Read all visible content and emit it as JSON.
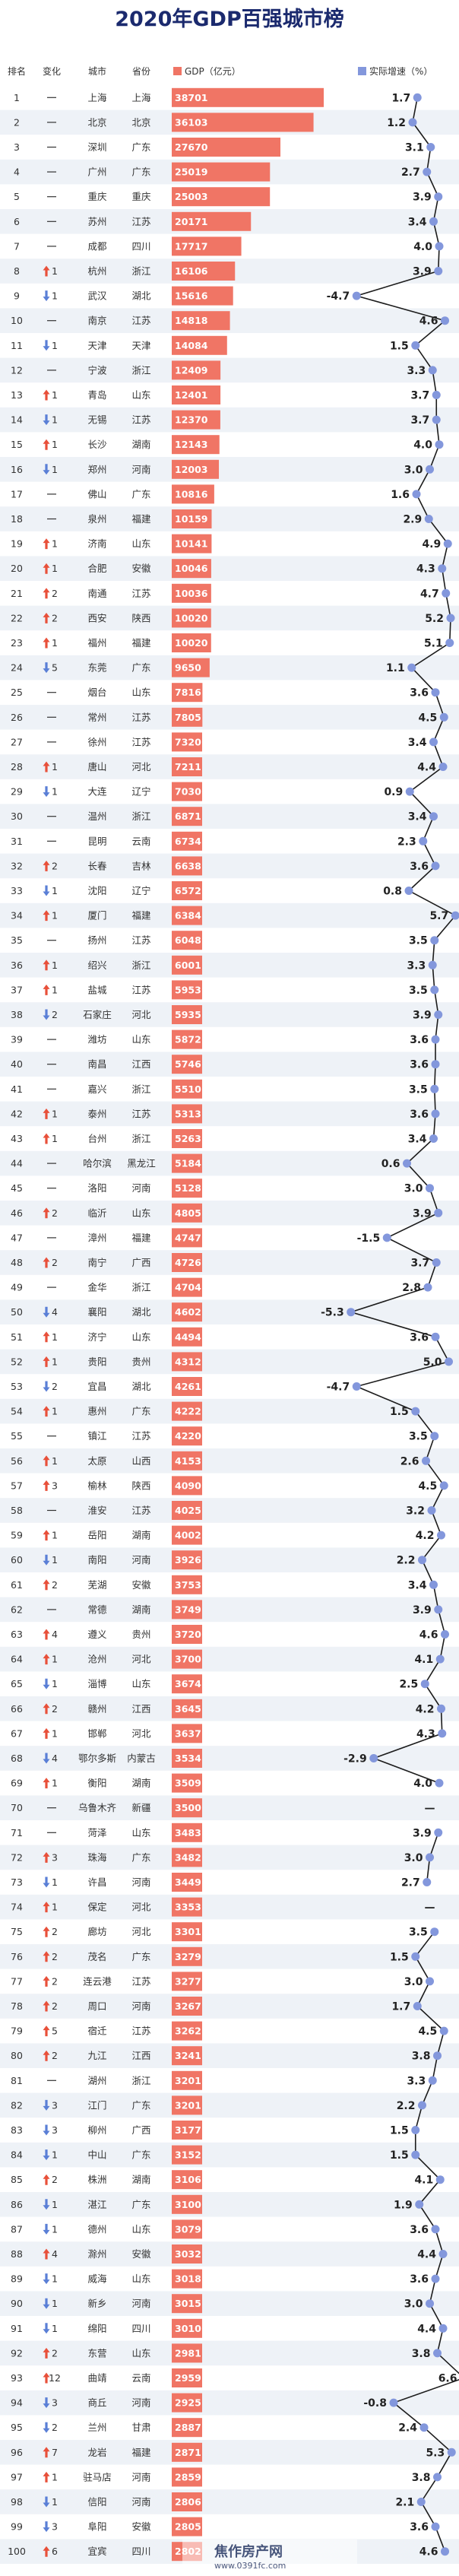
{
  "header": {
    "title": "2020年GDP百强城市榜",
    "columns": {
      "rank": "排名",
      "change": "变化",
      "city": "城市",
      "province": "省份"
    },
    "legend": {
      "gdp": "GDP（亿元）",
      "growth": "实际增速（%）"
    }
  },
  "watermark": {
    "text": "焦作房产网",
    "url": "www.0391fc.com"
  },
  "colors": {
    "bar": "#f07565",
    "line": "#1c1c1c",
    "point": "#8397dc",
    "up": "#e8503a",
    "down": "#5a7fd6",
    "row_alt": "#eef2f7"
  },
  "chart_data": {
    "type": "bar",
    "title": "2020年GDP百强城市榜",
    "xlabel": "",
    "ylabel": "",
    "series": [
      {
        "name": "GDP（亿元）",
        "kind": "bar"
      },
      {
        "name": "实际增速（%）",
        "kind": "line"
      }
    ],
    "rows": [
      {
        "rank": 1,
        "dir": "none",
        "delta": "",
        "city": "上海",
        "province": "上海",
        "gdp": 38701,
        "growth": "1.7"
      },
      {
        "rank": 2,
        "dir": "none",
        "delta": "",
        "city": "北京",
        "province": "北京",
        "gdp": 36103,
        "growth": "1.2"
      },
      {
        "rank": 3,
        "dir": "none",
        "delta": "",
        "city": "深圳",
        "province": "广东",
        "gdp": 27670,
        "growth": "3.1"
      },
      {
        "rank": 4,
        "dir": "none",
        "delta": "",
        "city": "广州",
        "province": "广东",
        "gdp": 25019,
        "growth": "2.7"
      },
      {
        "rank": 5,
        "dir": "none",
        "delta": "",
        "city": "重庆",
        "province": "重庆",
        "gdp": 25003,
        "growth": "3.9"
      },
      {
        "rank": 6,
        "dir": "none",
        "delta": "",
        "city": "苏州",
        "province": "江苏",
        "gdp": 20171,
        "growth": "3.4"
      },
      {
        "rank": 7,
        "dir": "none",
        "delta": "",
        "city": "成都",
        "province": "四川",
        "gdp": 17717,
        "growth": "4.0"
      },
      {
        "rank": 8,
        "dir": "up",
        "delta": "1",
        "city": "杭州",
        "province": "浙江",
        "gdp": 16106,
        "growth": "3.9"
      },
      {
        "rank": 9,
        "dir": "down",
        "delta": "1",
        "city": "武汉",
        "province": "湖北",
        "gdp": 15616,
        "growth": "-4.7"
      },
      {
        "rank": 10,
        "dir": "none",
        "delta": "",
        "city": "南京",
        "province": "江苏",
        "gdp": 14818,
        "growth": "4.6"
      },
      {
        "rank": 11,
        "dir": "down",
        "delta": "1",
        "city": "天津",
        "province": "天津",
        "gdp": 14084,
        "growth": "1.5"
      },
      {
        "rank": 12,
        "dir": "none",
        "delta": "",
        "city": "宁波",
        "province": "浙江",
        "gdp": 12409,
        "growth": "3.3"
      },
      {
        "rank": 13,
        "dir": "up",
        "delta": "1",
        "city": "青岛",
        "province": "山东",
        "gdp": 12401,
        "growth": "3.7"
      },
      {
        "rank": 14,
        "dir": "down",
        "delta": "1",
        "city": "无锡",
        "province": "江苏",
        "gdp": 12370,
        "growth": "3.7"
      },
      {
        "rank": 15,
        "dir": "up",
        "delta": "1",
        "city": "长沙",
        "province": "湖南",
        "gdp": 12143,
        "growth": "4.0"
      },
      {
        "rank": 16,
        "dir": "down",
        "delta": "1",
        "city": "郑州",
        "province": "河南",
        "gdp": 12003,
        "growth": "3.0"
      },
      {
        "rank": 17,
        "dir": "none",
        "delta": "",
        "city": "佛山",
        "province": "广东",
        "gdp": 10816,
        "growth": "1.6"
      },
      {
        "rank": 18,
        "dir": "none",
        "delta": "",
        "city": "泉州",
        "province": "福建",
        "gdp": 10159,
        "growth": "2.9"
      },
      {
        "rank": 19,
        "dir": "up",
        "delta": "1",
        "city": "济南",
        "province": "山东",
        "gdp": 10141,
        "growth": "4.9"
      },
      {
        "rank": 20,
        "dir": "up",
        "delta": "1",
        "city": "合肥",
        "province": "安徽",
        "gdp": 10046,
        "growth": "4.3"
      },
      {
        "rank": 21,
        "dir": "up",
        "delta": "2",
        "city": "南通",
        "province": "江苏",
        "gdp": 10036,
        "growth": "4.7"
      },
      {
        "rank": 22,
        "dir": "up",
        "delta": "2",
        "city": "西安",
        "province": "陕西",
        "gdp": 10020,
        "growth": "5.2"
      },
      {
        "rank": 23,
        "dir": "up",
        "delta": "1",
        "city": "福州",
        "province": "福建",
        "gdp": 10020,
        "growth": "5.1"
      },
      {
        "rank": 24,
        "dir": "down",
        "delta": "5",
        "city": "东莞",
        "province": "广东",
        "gdp": 9650,
        "growth": "1.1"
      },
      {
        "rank": 25,
        "dir": "none",
        "delta": "",
        "city": "烟台",
        "province": "山东",
        "gdp": 7816,
        "growth": "3.6"
      },
      {
        "rank": 26,
        "dir": "none",
        "delta": "",
        "city": "常州",
        "province": "江苏",
        "gdp": 7805,
        "growth": "4.5"
      },
      {
        "rank": 27,
        "dir": "none",
        "delta": "",
        "city": "徐州",
        "province": "江苏",
        "gdp": 7320,
        "growth": "3.4"
      },
      {
        "rank": 28,
        "dir": "up",
        "delta": "1",
        "city": "唐山",
        "province": "河北",
        "gdp": 7211,
        "growth": "4.4"
      },
      {
        "rank": 29,
        "dir": "down",
        "delta": "1",
        "city": "大连",
        "province": "辽宁",
        "gdp": 7030,
        "growth": "0.9"
      },
      {
        "rank": 30,
        "dir": "none",
        "delta": "",
        "city": "温州",
        "province": "浙江",
        "gdp": 6871,
        "growth": "3.4"
      },
      {
        "rank": 31,
        "dir": "none",
        "delta": "",
        "city": "昆明",
        "province": "云南",
        "gdp": 6734,
        "growth": "2.3"
      },
      {
        "rank": 32,
        "dir": "up",
        "delta": "2",
        "city": "长春",
        "province": "吉林",
        "gdp": 6638,
        "growth": "3.6"
      },
      {
        "rank": 33,
        "dir": "down",
        "delta": "1",
        "city": "沈阳",
        "province": "辽宁",
        "gdp": 6572,
        "growth": "0.8"
      },
      {
        "rank": 34,
        "dir": "up",
        "delta": "1",
        "city": "厦门",
        "province": "福建",
        "gdp": 6384,
        "growth": "5.7"
      },
      {
        "rank": 35,
        "dir": "none",
        "delta": "",
        "city": "扬州",
        "province": "江苏",
        "gdp": 6048,
        "growth": "3.5"
      },
      {
        "rank": 36,
        "dir": "up",
        "delta": "1",
        "city": "绍兴",
        "province": "浙江",
        "gdp": 6001,
        "growth": "3.3"
      },
      {
        "rank": 37,
        "dir": "up",
        "delta": "1",
        "city": "盐城",
        "province": "江苏",
        "gdp": 5953,
        "growth": "3.5"
      },
      {
        "rank": 38,
        "dir": "down",
        "delta": "2",
        "city": "石家庄",
        "province": "河北",
        "gdp": 5935,
        "growth": "3.9"
      },
      {
        "rank": 39,
        "dir": "none",
        "delta": "",
        "city": "潍坊",
        "province": "山东",
        "gdp": 5872,
        "growth": "3.6"
      },
      {
        "rank": 40,
        "dir": "none",
        "delta": "",
        "city": "南昌",
        "province": "江西",
        "gdp": 5746,
        "growth": "3.6"
      },
      {
        "rank": 41,
        "dir": "none",
        "delta": "",
        "city": "嘉兴",
        "province": "浙江",
        "gdp": 5510,
        "growth": "3.5"
      },
      {
        "rank": 42,
        "dir": "up",
        "delta": "1",
        "city": "泰州",
        "province": "江苏",
        "gdp": 5313,
        "growth": "3.6"
      },
      {
        "rank": 43,
        "dir": "up",
        "delta": "1",
        "city": "台州",
        "province": "浙江",
        "gdp": 5263,
        "growth": "3.4"
      },
      {
        "rank": 44,
        "dir": "none",
        "delta": "",
        "city": "哈尔滨",
        "province": "黑龙江",
        "gdp": 5184,
        "growth": "0.6"
      },
      {
        "rank": 45,
        "dir": "none",
        "delta": "",
        "city": "洛阳",
        "province": "河南",
        "gdp": 5128,
        "growth": "3.0"
      },
      {
        "rank": 46,
        "dir": "up",
        "delta": "2",
        "city": "临沂",
        "province": "山东",
        "gdp": 4805,
        "growth": "3.9"
      },
      {
        "rank": 47,
        "dir": "none",
        "delta": "",
        "city": "漳州",
        "province": "福建",
        "gdp": 4747,
        "growth": "-1.5"
      },
      {
        "rank": 48,
        "dir": "up",
        "delta": "2",
        "city": "南宁",
        "province": "广西",
        "gdp": 4726,
        "growth": "3.7"
      },
      {
        "rank": 49,
        "dir": "none",
        "delta": "",
        "city": "金华",
        "province": "浙江",
        "gdp": 4704,
        "growth": "2.8"
      },
      {
        "rank": 50,
        "dir": "down",
        "delta": "4",
        "city": "襄阳",
        "province": "湖北",
        "gdp": 4602,
        "growth": "-5.3"
      },
      {
        "rank": 51,
        "dir": "up",
        "delta": "1",
        "city": "济宁",
        "province": "山东",
        "gdp": 4494,
        "growth": "3.6"
      },
      {
        "rank": 52,
        "dir": "up",
        "delta": "1",
        "city": "贵阳",
        "province": "贵州",
        "gdp": 4312,
        "growth": "5.0"
      },
      {
        "rank": 53,
        "dir": "down",
        "delta": "2",
        "city": "宜昌",
        "province": "湖北",
        "gdp": 4261,
        "growth": "-4.7"
      },
      {
        "rank": 54,
        "dir": "up",
        "delta": "1",
        "city": "惠州",
        "province": "广东",
        "gdp": 4222,
        "growth": "1.5"
      },
      {
        "rank": 55,
        "dir": "none",
        "delta": "",
        "city": "镇江",
        "province": "江苏",
        "gdp": 4220,
        "growth": "3.5"
      },
      {
        "rank": 56,
        "dir": "up",
        "delta": "1",
        "city": "太原",
        "province": "山西",
        "gdp": 4153,
        "growth": "2.6"
      },
      {
        "rank": 57,
        "dir": "up",
        "delta": "3",
        "city": "榆林",
        "province": "陕西",
        "gdp": 4090,
        "growth": "4.5"
      },
      {
        "rank": 58,
        "dir": "none",
        "delta": "",
        "city": "淮安",
        "province": "江苏",
        "gdp": 4025,
        "growth": "3.2"
      },
      {
        "rank": 59,
        "dir": "up",
        "delta": "1",
        "city": "岳阳",
        "province": "湖南",
        "gdp": 4002,
        "growth": "4.2"
      },
      {
        "rank": 60,
        "dir": "down",
        "delta": "1",
        "city": "南阳",
        "province": "河南",
        "gdp": 3926,
        "growth": "2.2"
      },
      {
        "rank": 61,
        "dir": "up",
        "delta": "2",
        "city": "芜湖",
        "province": "安徽",
        "gdp": 3753,
        "growth": "3.4"
      },
      {
        "rank": 62,
        "dir": "none",
        "delta": "",
        "city": "常德",
        "province": "湖南",
        "gdp": 3749,
        "growth": "3.9"
      },
      {
        "rank": 63,
        "dir": "up",
        "delta": "4",
        "city": "遵义",
        "province": "贵州",
        "gdp": 3720,
        "growth": "4.6"
      },
      {
        "rank": 64,
        "dir": "up",
        "delta": "1",
        "city": "沧州",
        "province": "河北",
        "gdp": 3700,
        "growth": "4.1"
      },
      {
        "rank": 65,
        "dir": "down",
        "delta": "1",
        "city": "淄博",
        "province": "山东",
        "gdp": 3674,
        "growth": "2.5"
      },
      {
        "rank": 66,
        "dir": "up",
        "delta": "2",
        "city": "赣州",
        "province": "江西",
        "gdp": 3645,
        "growth": "4.2"
      },
      {
        "rank": 67,
        "dir": "up",
        "delta": "1",
        "city": "邯郸",
        "province": "河北",
        "gdp": 3637,
        "growth": "4.3"
      },
      {
        "rank": 68,
        "dir": "down",
        "delta": "4",
        "city": "鄂尔多斯",
        "province": "内蒙古",
        "gdp": 3534,
        "growth": "-2.9"
      },
      {
        "rank": 69,
        "dir": "up",
        "delta": "1",
        "city": "衡阳",
        "province": "湖南",
        "gdp": 3509,
        "growth": "4.0"
      },
      {
        "rank": 70,
        "dir": "none",
        "delta": "",
        "city": "乌鲁木齐",
        "province": "新疆",
        "gdp": 3500,
        "growth": "—"
      },
      {
        "rank": 71,
        "dir": "none",
        "delta": "",
        "city": "菏泽",
        "province": "山东",
        "gdp": 3483,
        "growth": "3.9"
      },
      {
        "rank": 72,
        "dir": "up",
        "delta": "3",
        "city": "珠海",
        "province": "广东",
        "gdp": 3482,
        "growth": "3.0"
      },
      {
        "rank": 73,
        "dir": "down",
        "delta": "1",
        "city": "许昌",
        "province": "河南",
        "gdp": 3449,
        "growth": "2.7"
      },
      {
        "rank": 74,
        "dir": "up",
        "delta": "1",
        "city": "保定",
        "province": "河北",
        "gdp": 3353,
        "growth": "—"
      },
      {
        "rank": 75,
        "dir": "up",
        "delta": "2",
        "city": "廊坊",
        "province": "河北",
        "gdp": 3301,
        "growth": "3.5"
      },
      {
        "rank": 76,
        "dir": "up",
        "delta": "2",
        "city": "茂名",
        "province": "广东",
        "gdp": 3279,
        "growth": "1.5"
      },
      {
        "rank": 77,
        "dir": "up",
        "delta": "2",
        "city": "连云港",
        "province": "江苏",
        "gdp": 3277,
        "growth": "3.0"
      },
      {
        "rank": 78,
        "dir": "up",
        "delta": "2",
        "city": "周口",
        "province": "河南",
        "gdp": 3267,
        "growth": "1.7"
      },
      {
        "rank": 79,
        "dir": "up",
        "delta": "5",
        "city": "宿迁",
        "province": "江苏",
        "gdp": 3262,
        "growth": "4.5"
      },
      {
        "rank": 80,
        "dir": "up",
        "delta": "2",
        "city": "九江",
        "province": "江西",
        "gdp": 3241,
        "growth": "3.8"
      },
      {
        "rank": 81,
        "dir": "none",
        "delta": "",
        "city": "湖州",
        "province": "浙江",
        "gdp": 3201,
        "growth": "3.3"
      },
      {
        "rank": 82,
        "dir": "down",
        "delta": "3",
        "city": "江门",
        "province": "广东",
        "gdp": 3201,
        "growth": "2.2"
      },
      {
        "rank": 83,
        "dir": "down",
        "delta": "3",
        "city": "柳州",
        "province": "广西",
        "gdp": 3177,
        "growth": "1.5"
      },
      {
        "rank": 84,
        "dir": "down",
        "delta": "1",
        "city": "中山",
        "province": "广东",
        "gdp": 3152,
        "growth": "1.5"
      },
      {
        "rank": 85,
        "dir": "up",
        "delta": "2",
        "city": "株洲",
        "province": "湖南",
        "gdp": 3106,
        "growth": "4.1"
      },
      {
        "rank": 86,
        "dir": "down",
        "delta": "1",
        "city": "湛江",
        "province": "广东",
        "gdp": 3100,
        "growth": "1.9"
      },
      {
        "rank": 87,
        "dir": "down",
        "delta": "1",
        "city": "德州",
        "province": "山东",
        "gdp": 3079,
        "growth": "3.6"
      },
      {
        "rank": 88,
        "dir": "up",
        "delta": "4",
        "city": "滁州",
        "province": "安徽",
        "gdp": 3032,
        "growth": "4.4"
      },
      {
        "rank": 89,
        "dir": "down",
        "delta": "1",
        "city": "威海",
        "province": "山东",
        "gdp": 3018,
        "growth": "3.6"
      },
      {
        "rank": 90,
        "dir": "down",
        "delta": "1",
        "city": "新乡",
        "province": "河南",
        "gdp": 3015,
        "growth": "3.0"
      },
      {
        "rank": 91,
        "dir": "down",
        "delta": "1",
        "city": "绵阳",
        "province": "四川",
        "gdp": 3010,
        "growth": "4.4"
      },
      {
        "rank": 92,
        "dir": "up",
        "delta": "2",
        "city": "东营",
        "province": "山东",
        "gdp": 2981,
        "growth": "3.8"
      },
      {
        "rank": 93,
        "dir": "up",
        "delta": "12",
        "city": "曲靖",
        "province": "云南",
        "gdp": 2959,
        "growth": "6.6"
      },
      {
        "rank": 94,
        "dir": "down",
        "delta": "3",
        "city": "商丘",
        "province": "河南",
        "gdp": 2925,
        "growth": "-0.8"
      },
      {
        "rank": 95,
        "dir": "down",
        "delta": "2",
        "city": "兰州",
        "province": "甘肃",
        "gdp": 2887,
        "growth": "2.4"
      },
      {
        "rank": 96,
        "dir": "up",
        "delta": "7",
        "city": "龙岩",
        "province": "福建",
        "gdp": 2871,
        "growth": "5.3"
      },
      {
        "rank": 97,
        "dir": "up",
        "delta": "1",
        "city": "驻马店",
        "province": "河南",
        "gdp": 2859,
        "growth": "3.8"
      },
      {
        "rank": 98,
        "dir": "down",
        "delta": "1",
        "city": "信阳",
        "province": "河南",
        "gdp": 2806,
        "growth": "2.1"
      },
      {
        "rank": 99,
        "dir": "down",
        "delta": "3",
        "city": "阜阳",
        "province": "安徽",
        "gdp": 2805,
        "growth": "3.6"
      },
      {
        "rank": 100,
        "dir": "up",
        "delta": "6",
        "city": "宜宾",
        "province": "四川",
        "gdp": 2802,
        "growth": "4.6"
      }
    ]
  }
}
